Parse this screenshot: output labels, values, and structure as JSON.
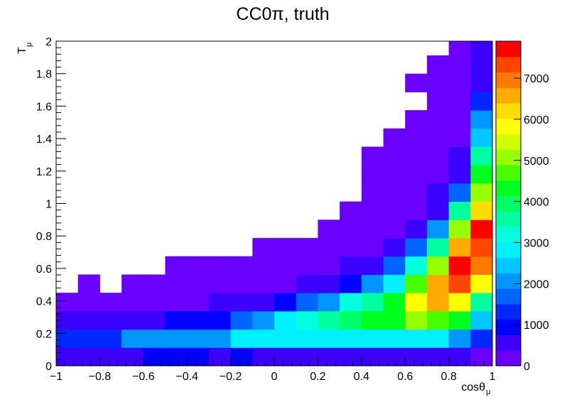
{
  "chart_data": {
    "type": "heatmap",
    "title": "CC0π, truth",
    "xlabel": "cosθ",
    "xlabel_sub": "μ",
    "ylabel": "T",
    "ylabel_sub": "μ",
    "xlim": [
      -1,
      1
    ],
    "ylim": [
      0,
      2
    ],
    "x_ticks": [
      "−1",
      "−0.8",
      "−0.6",
      "−0.4",
      "−0.2",
      "0",
      "0.2",
      "0.4",
      "0.6",
      "0.8",
      "1"
    ],
    "y_ticks": [
      "0",
      "0.2",
      "0.4",
      "0.6",
      "0.8",
      "1",
      "1.2",
      "1.4",
      "1.6",
      "1.8",
      "2"
    ],
    "z_ticks": [
      "0",
      "1000",
      "2000",
      "3000",
      "4000",
      "5000",
      "6000",
      "7000"
    ],
    "z_max": 7900,
    "x_bin_edges": [
      -1,
      -0.9,
      -0.8,
      -0.7,
      -0.6,
      -0.5,
      -0.4,
      -0.3,
      -0.2,
      -0.1,
      0,
      0.1,
      0.2,
      0.3,
      0.4,
      0.5,
      0.6,
      0.7,
      0.8,
      0.9,
      1
    ],
    "y_bin_edges": [
      0,
      0.1125,
      0.225,
      0.3375,
      0.45,
      0.5625,
      0.675,
      0.7875,
      0.9,
      1.0125,
      1.125,
      1.2375,
      1.35,
      1.4625,
      1.575,
      1.6875,
      1.8,
      1.9125,
      2
    ],
    "z": [
      [
        750,
        750,
        750,
        750,
        1000,
        1000,
        1000,
        750,
        1000,
        750,
        750,
        750,
        750,
        750,
        750,
        750,
        750,
        750,
        750,
        250
      ],
      [
        1500,
        1500,
        1500,
        2000,
        2000,
        2000,
        2250,
        2250,
        2750,
        2750,
        2750,
        2750,
        2750,
        3000,
        2750,
        3000,
        2750,
        2750,
        2000,
        1250
      ],
      [
        500,
        500,
        750,
        750,
        750,
        1000,
        1000,
        1000,
        1750,
        2250,
        2750,
        3250,
        3750,
        4000,
        4500,
        4500,
        5000,
        4750,
        4250,
        2500
      ],
      [
        250,
        250,
        250,
        250,
        250,
        250,
        250,
        500,
        500,
        750,
        1000,
        1750,
        2250,
        3250,
        3750,
        4500,
        5750,
        6500,
        5750,
        3750
      ],
      [
        0,
        250,
        0,
        250,
        250,
        250,
        250,
        250,
        250,
        250,
        250,
        500,
        500,
        1000,
        2000,
        3000,
        4750,
        6500,
        7500,
        5750
      ],
      [
        0,
        0,
        0,
        0,
        0,
        250,
        250,
        250,
        250,
        250,
        250,
        250,
        250,
        500,
        750,
        1750,
        3250,
        5250,
        7750,
        7000
      ],
      [
        0,
        0,
        0,
        0,
        0,
        0,
        0,
        0,
        0,
        250,
        250,
        250,
        250,
        250,
        250,
        500,
        1750,
        3750,
        6750,
        7250
      ],
      [
        0,
        0,
        0,
        0,
        0,
        0,
        0,
        0,
        0,
        0,
        0,
        0,
        250,
        250,
        250,
        250,
        500,
        2000,
        5250,
        7750
      ],
      [
        0,
        0,
        0,
        0,
        0,
        0,
        0,
        0,
        0,
        0,
        0,
        0,
        0,
        250,
        250,
        250,
        250,
        750,
        3500,
        6250
      ],
      [
        0,
        0,
        0,
        0,
        0,
        0,
        0,
        0,
        0,
        0,
        0,
        0,
        0,
        0,
        250,
        250,
        250,
        500,
        1750,
        5250
      ],
      [
        0,
        0,
        0,
        0,
        0,
        0,
        0,
        0,
        0,
        0,
        0,
        0,
        0,
        0,
        250,
        250,
        250,
        250,
        750,
        4500
      ],
      [
        0,
        0,
        0,
        0,
        0,
        0,
        0,
        0,
        0,
        0,
        0,
        0,
        0,
        0,
        250,
        250,
        250,
        250,
        500,
        3500
      ],
      [
        0,
        0,
        0,
        0,
        0,
        0,
        0,
        0,
        0,
        0,
        0,
        0,
        0,
        0,
        0,
        250,
        250,
        250,
        250,
        2500
      ],
      [
        0,
        0,
        0,
        0,
        0,
        0,
        0,
        0,
        0,
        0,
        0,
        0,
        0,
        0,
        0,
        0,
        250,
        250,
        250,
        2000
      ],
      [
        0,
        0,
        0,
        0,
        0,
        0,
        0,
        0,
        0,
        0,
        0,
        0,
        0,
        0,
        0,
        0,
        0,
        250,
        250,
        1250
      ],
      [
        0,
        0,
        0,
        0,
        0,
        0,
        0,
        0,
        0,
        0,
        0,
        0,
        0,
        0,
        0,
        0,
        250,
        250,
        250,
        750
      ],
      [
        0,
        0,
        0,
        0,
        0,
        0,
        0,
        0,
        0,
        0,
        0,
        0,
        0,
        0,
        0,
        0,
        0,
        250,
        250,
        750
      ],
      [
        0,
        0,
        0,
        0,
        0,
        0,
        0,
        0,
        0,
        0,
        0,
        0,
        0,
        0,
        0,
        0,
        0,
        0,
        250,
        500
      ]
    ],
    "palette": [
      "#6a00ff",
      "#3c00ff",
      "#0000ff",
      "#0028ff",
      "#0064ff",
      "#0096ff",
      "#00c8ff",
      "#00f0ff",
      "#00ffdc",
      "#00ffa0",
      "#00ff64",
      "#00ff1e",
      "#46ff00",
      "#96ff00",
      "#d2ff00",
      "#ffff00",
      "#ffdc00",
      "#ffaa00",
      "#ff7800",
      "#ff4600",
      "#ff0000"
    ],
    "grid": false,
    "colorbar": "right"
  }
}
